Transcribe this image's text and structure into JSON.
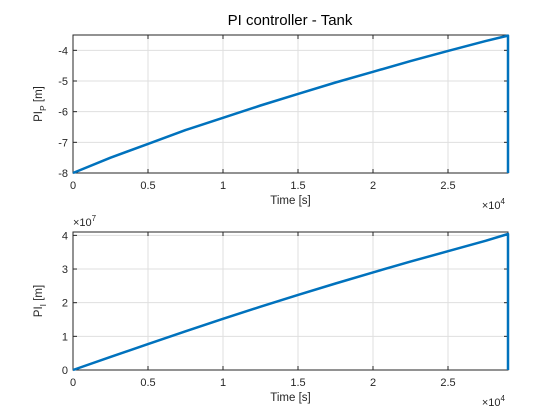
{
  "figure_title": "PI controller - Tank",
  "colors": {
    "line": "#0072bd",
    "grid": "#dfdfdf",
    "axis": "#262626"
  },
  "chart_data": [
    {
      "type": "line",
      "title": "PI controller - Tank",
      "xlabel": "Time [s]",
      "ylabel": {
        "base": "PI",
        "sub": "P",
        "suffix": " [m]"
      },
      "xlim": [
        0,
        29000
      ],
      "ylim": [
        -8,
        -3.5
      ],
      "xticks": [
        0,
        5000,
        10000,
        15000,
        20000,
        25000
      ],
      "xtick_labels": [
        "0",
        "0.5",
        "1",
        "1.5",
        "2",
        "2.5"
      ],
      "xexponent": {
        "base": "×10",
        "power": "4"
      },
      "yticks": [
        -8,
        -7,
        -6,
        -5,
        -4
      ],
      "ytick_labels": [
        "-8",
        "-7",
        "-6",
        "-5",
        "-4"
      ],
      "grid": true,
      "series": [
        {
          "x": [
            0,
            2500,
            5000,
            7500,
            10000,
            12500,
            15000,
            17500,
            20000,
            22500,
            25000,
            27500,
            29000
          ],
          "y": [
            -8.0,
            -7.5,
            -7.05,
            -6.6,
            -6.2,
            -5.8,
            -5.42,
            -5.05,
            -4.7,
            -4.35,
            -4.02,
            -3.7,
            -3.52
          ]
        }
      ],
      "end_drop_to": -8
    },
    {
      "type": "line",
      "xlabel": "Time [s]",
      "ylabel": {
        "base": "PI",
        "sub": "I",
        "suffix": " [m]"
      },
      "xlim": [
        0,
        29000
      ],
      "ylim": [
        0,
        41000000
      ],
      "xticks": [
        0,
        5000,
        10000,
        15000,
        20000,
        25000
      ],
      "xtick_labels": [
        "0",
        "0.5",
        "1",
        "1.5",
        "2",
        "2.5"
      ],
      "xexponent": {
        "base": "×10",
        "power": "4"
      },
      "yticks": [
        0,
        10000000,
        20000000,
        30000000,
        40000000
      ],
      "ytick_labels": [
        "0",
        "1",
        "2",
        "3",
        "4"
      ],
      "yexponent": {
        "base": "×10",
        "power": "7"
      },
      "grid": true,
      "series": [
        {
          "x": [
            0,
            2500,
            5000,
            7500,
            10000,
            12500,
            15000,
            17500,
            20000,
            22500,
            25000,
            27500,
            29000
          ],
          "y": [
            0,
            3900000,
            7700000,
            11500000,
            15200000,
            18800000,
            22300000,
            25700000,
            29000000,
            32200000,
            35300000,
            38400000,
            40400000
          ]
        }
      ],
      "end_drop_to": 0
    }
  ]
}
